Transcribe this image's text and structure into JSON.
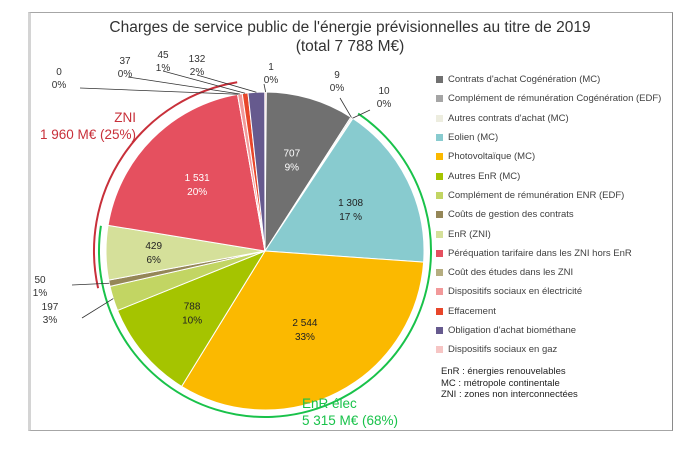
{
  "chart_data": {
    "type": "pie",
    "title": "Charges de service public de l'énergie prévisionnelles au titre de 2019",
    "subtitle": "(total 7 788 M€)",
    "unit": "M€",
    "total": 7788,
    "start_angle_deg": 0,
    "direction": "clockwise",
    "slices": [
      {
        "name": "Contrats d'achat Cogénération (MC)",
        "value": 707,
        "label_value": "707",
        "label_pct": "9%",
        "color": "#707070",
        "label_inside": true,
        "label_color": "#ffffff"
      },
      {
        "name": "Complément de rémunération Cogénération (EDF)",
        "value": 9,
        "label_value": "9",
        "label_pct": "0%",
        "color": "#a5a5a5",
        "label_inside": false
      },
      {
        "name": "Autres contrats d'achat (MC)",
        "value": 10,
        "label_value": "10",
        "label_pct": "0%",
        "color": "#ededdf",
        "label_inside": false
      },
      {
        "name": "Eolien (MC)",
        "value": 1308,
        "label_value": "1 308",
        "label_pct": "17 %",
        "color": "#88cbcf",
        "label_inside": true,
        "label_color": "#222222"
      },
      {
        "name": "Photovoltaïque (MC)",
        "value": 2544,
        "label_value": "2 544",
        "label_pct": "33%",
        "color": "#fbb900",
        "label_inside": true,
        "label_color": "#222222"
      },
      {
        "name": "Autres EnR (MC)",
        "value": 788,
        "label_value": "788",
        "label_pct": "10%",
        "color": "#a5c400",
        "label_inside": true,
        "label_color": "#222222"
      },
      {
        "name": "Complément de rémunération ENR (EDF)",
        "value": 197,
        "label_value": "197",
        "label_pct": "3%",
        "color": "#c2d563",
        "label_inside": false
      },
      {
        "name": "Coûts de gestion des contrats",
        "value": 50,
        "label_value": "50",
        "label_pct": "1%",
        "color": "#958758",
        "label_inside": false
      },
      {
        "name": "EnR (ZNI)",
        "value": 429,
        "label_value": "429",
        "label_pct": "6%",
        "color": "#d5e09a",
        "label_inside": true,
        "label_color": "#222222"
      },
      {
        "name": "Péréquation tarifaire dans les ZNI hors EnR",
        "value": 1531,
        "label_value": "1 531",
        "label_pct": "20%",
        "color": "#e5505f",
        "label_inside": true,
        "label_color": "#ffffff"
      },
      {
        "name": "Coût des études dans les ZNI",
        "value": 0,
        "label_value": "0",
        "label_pct": "0%",
        "color": "#b5ad80",
        "label_inside": false
      },
      {
        "name": "Dispositifs sociaux en électricité",
        "value": 37,
        "label_value": "37",
        "label_pct": "0%",
        "color": "#f2999a",
        "label_inside": false
      },
      {
        "name": "Effacement",
        "value": 45,
        "label_value": "45",
        "label_pct": "1%",
        "color": "#e8462a",
        "label_inside": false
      },
      {
        "name": "Obligation d'achat biométhane",
        "value": 132,
        "label_value": "132",
        "label_pct": "2%",
        "color": "#665a8e",
        "label_inside": false
      },
      {
        "name": "Dispositifs sociaux en gaz",
        "value": 1,
        "label_value": "1",
        "label_pct": "0%",
        "color": "#f6c5c4",
        "label_inside": false
      }
    ],
    "groups": [
      {
        "name": "ZNI",
        "label_line1": "ZNI",
        "label_line2": "1 960 M€ (25%)",
        "value": 1960,
        "pct": "25%",
        "color": "#c8303a"
      },
      {
        "name": "EnR élec",
        "label_line1": "EnR  élec",
        "label_line2": "5 315 M€ (68%)",
        "value": 5315,
        "pct": "68%",
        "color": "#19c24a"
      }
    ],
    "legend_position": "right",
    "notes": [
      "EnR : énergies renouvelables",
      "MC : métropole continentale",
      "ZNI : zones non interconnectées"
    ]
  }
}
